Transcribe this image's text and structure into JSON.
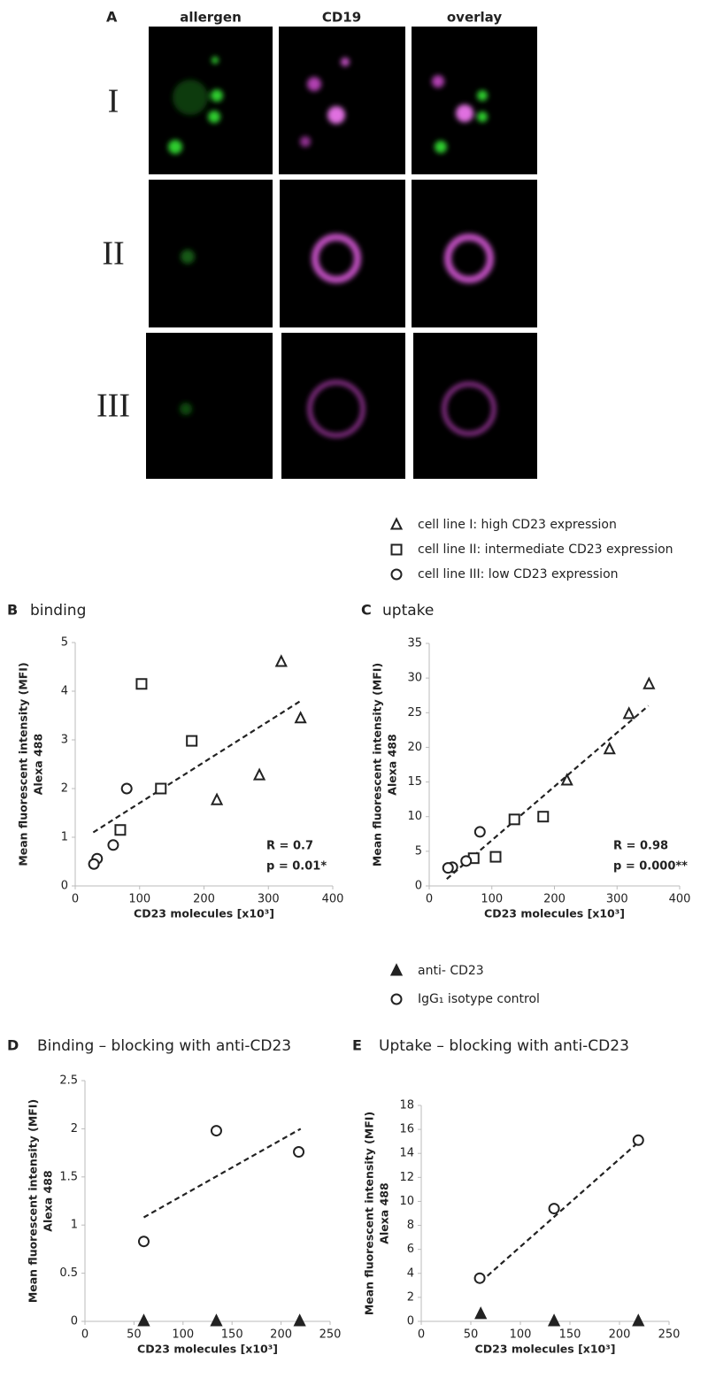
{
  "panel_a": {
    "label": "A",
    "columns": [
      "allergen",
      "CD19",
      "overlay"
    ],
    "rows": [
      "I",
      "II",
      "III"
    ]
  },
  "chart_data": [
    {
      "type": "scatter",
      "panel": "B",
      "title": "binding",
      "y_label": [
        "Mean fluorescent intensity (MFI)",
        "Alexa 488"
      ],
      "x_label": "CD23 molecules [x10³]",
      "xlim": [
        0,
        400
      ],
      "xticks": [
        0,
        100,
        200,
        300,
        400
      ],
      "ylim": [
        0,
        5
      ],
      "yticks": [
        0,
        1,
        2,
        3,
        4,
        5
      ],
      "series": [
        {
          "name": "cell line I: high CD23 expression",
          "marker": "triangle",
          "color": "#222",
          "fill": "#ffffff",
          "x": [
            320,
            350,
            286,
            220
          ],
          "values": [
            4.6,
            3.44,
            2.27,
            1.76
          ]
        },
        {
          "name": "cell line II: intermediate CD23 expression",
          "marker": "square",
          "color": "#222",
          "fill": "#ffffff",
          "x": [
            103,
            181,
            133,
            70
          ],
          "values": [
            4.15,
            2.98,
            2.0,
            1.15
          ]
        },
        {
          "name": "cell line III: low CD23 expression",
          "marker": "circle",
          "color": "#222",
          "fill": "#ffffff",
          "x": [
            80,
            59,
            34,
            29
          ],
          "values": [
            2.0,
            0.84,
            0.56,
            0.45
          ]
        }
      ],
      "trendline": {
        "x": [
          28,
          350
        ],
        "y": [
          1.1,
          3.8
        ]
      },
      "annotations": [
        "R = 0.7",
        "p = 0.01*"
      ]
    },
    {
      "type": "scatter",
      "panel": "C",
      "title": "uptake",
      "y_label": [
        "Mean fluorescent intensity (MFI)",
        "Alexa 488"
      ],
      "x_label": "CD23 molecules [x10³]",
      "xlim": [
        0,
        400
      ],
      "xticks": [
        0,
        100,
        200,
        300,
        400
      ],
      "ylim": [
        0,
        35
      ],
      "yticks": [
        0,
        5,
        10,
        15,
        20,
        25,
        30,
        35
      ],
      "series": [
        {
          "marker": "triangle",
          "color": "#222",
          "fill": "#ffffff",
          "x": [
            351,
            319,
            288,
            220
          ],
          "values": [
            29.1,
            24.8,
            19.7,
            15.2
          ]
        },
        {
          "marker": "square",
          "color": "#222",
          "fill": "#ffffff",
          "x": [
            182,
            136,
            106,
            71
          ],
          "values": [
            10.0,
            9.6,
            4.2,
            4.0
          ]
        },
        {
          "marker": "circle",
          "color": "#222",
          "fill": "#ffffff",
          "x": [
            81,
            59,
            37,
            30
          ],
          "values": [
            7.8,
            3.6,
            2.7,
            2.6
          ]
        }
      ],
      "trendline": {
        "x": [
          28,
          350
        ],
        "y": [
          1.0,
          26.0
        ]
      },
      "annotations": [
        "R = 0.98",
        "p = 0.000**"
      ]
    },
    {
      "type": "scatter",
      "panel": "D",
      "title": "Binding – blocking with anti-CD23",
      "y_label": [
        "Mean fluorescent intensity (MFI)",
        "Alexa 488"
      ],
      "x_label": "CD23 molecules [x10³]",
      "xlim": [
        0,
        250
      ],
      "xticks": [
        0,
        50,
        100,
        150,
        200,
        250
      ],
      "ylim": [
        0,
        2.5
      ],
      "yticks": [
        0,
        0.5,
        1,
        1.5,
        2,
        2.5
      ],
      "series": [
        {
          "name": "anti- CD23",
          "marker": "filled-triangle",
          "color": "#222",
          "fill": "#222222",
          "x": [
            60,
            134,
            219
          ],
          "values": [
            0,
            0,
            0
          ]
        },
        {
          "name": "IgG₁ isotype control",
          "marker": "circle",
          "color": "#222",
          "fill": "#ffffff",
          "x": [
            60,
            134,
            218
          ],
          "values": [
            0.83,
            1.98,
            1.76
          ]
        }
      ],
      "trendline": {
        "x": [
          60,
          220
        ],
        "y": [
          1.08,
          2.0
        ]
      }
    },
    {
      "type": "scatter",
      "panel": "E",
      "title": "Uptake – blocking with anti-CD23",
      "y_label": [
        "Mean fluorescent intensity (MFI)",
        "Alexa 488"
      ],
      "x_label": "CD23 molecules [x10³]",
      "xlim": [
        0,
        250
      ],
      "xticks": [
        0,
        50,
        100,
        150,
        200,
        250
      ],
      "ylim": [
        0,
        18
      ],
      "yticks": [
        0,
        2,
        4,
        6,
        8,
        10,
        12,
        14,
        16,
        18
      ],
      "series": [
        {
          "marker": "filled-triangle",
          "color": "#222",
          "fill": "#222222",
          "x": [
            60,
            134,
            219
          ],
          "values": [
            0.6,
            0,
            0
          ]
        },
        {
          "marker": "circle",
          "color": "#222",
          "fill": "#ffffff",
          "x": [
            59,
            134,
            219
          ],
          "values": [
            3.6,
            9.4,
            15.1
          ]
        }
      ],
      "trendline": {
        "x": [
          60,
          220
        ],
        "y": [
          3.3,
          15.0
        ]
      }
    }
  ]
}
